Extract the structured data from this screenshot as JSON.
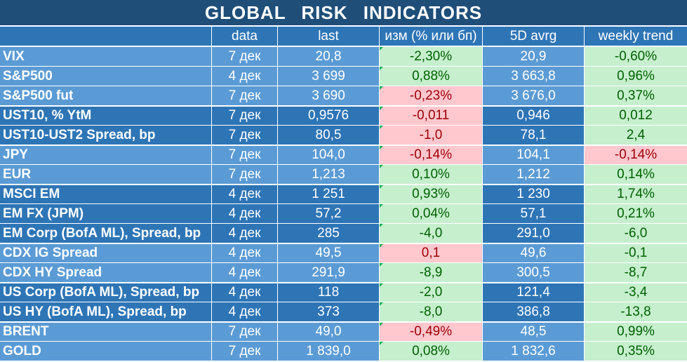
{
  "title": "GLOBAL  RISK  INDICATORS",
  "columns": [
    "",
    "data",
    "last",
    "изм (% или бп)",
    "5D avrg",
    "weekly trend"
  ],
  "rows": [
    {
      "name": "VIX",
      "date": "7 дек",
      "last": "20,8",
      "chg": "-2,30%",
      "chg_tone": "pos",
      "avg": "20,9",
      "trend": "-0,60%",
      "trend_tone": "pos",
      "group_start": false
    },
    {
      "name": "S&P500",
      "date": "4 дек",
      "last": "3 699",
      "chg": "0,88%",
      "chg_tone": "pos",
      "avg": "3 663,8",
      "trend": "0,96%",
      "trend_tone": "pos",
      "group_start": false
    },
    {
      "name": "S&P500 fut",
      "date": "7 дек",
      "last": "3 690",
      "chg": "-0,23%",
      "chg_tone": "neg",
      "avg": "3 676,0",
      "trend": "0,37%",
      "trend_tone": "pos",
      "group_start": false
    },
    {
      "name": "UST10, % YtM",
      "date": "7 дек",
      "last": "0,9576",
      "chg": "-0,011",
      "chg_tone": "neg",
      "avg": "0,946",
      "trend": "0,012",
      "trend_tone": "pos",
      "group_start": true
    },
    {
      "name": "UST10-UST2 Spread, bp",
      "date": "7 дек",
      "last": "80,5",
      "chg": "-1,0",
      "chg_tone": "neg",
      "avg": "78,1",
      "trend": "2,4",
      "trend_tone": "pos",
      "group_start": false
    },
    {
      "name": "JPY",
      "date": "7 дек",
      "last": "104,0",
      "chg": "-0,14%",
      "chg_tone": "neg",
      "avg": "104,1",
      "trend": "-0,14%",
      "trend_tone": "neg",
      "group_start": true
    },
    {
      "name": "EUR",
      "date": "7 дек",
      "last": "1,213",
      "chg": "0,10%",
      "chg_tone": "pos",
      "avg": "1,212",
      "trend": "0,14%",
      "trend_tone": "pos",
      "group_start": false
    },
    {
      "name": "MSCI EM",
      "date": "4 дек",
      "last": "1 251",
      "chg": "0,93%",
      "chg_tone": "pos",
      "avg": "1 230",
      "trend": "1,74%",
      "trend_tone": "pos",
      "group_start": true
    },
    {
      "name": "EM FX (JPM)",
      "date": "4 дек",
      "last": "57,2",
      "chg": "0,04%",
      "chg_tone": "pos",
      "avg": "57,1",
      "trend": "0,21%",
      "trend_tone": "pos",
      "group_start": false
    },
    {
      "name": "EM Corp (BofA ML), Spread, bp",
      "date": "4 дек",
      "last": "285",
      "chg": "-4,0",
      "chg_tone": "pos",
      "avg": "291,0",
      "trend": "-6,0",
      "trend_tone": "pos",
      "group_start": false
    },
    {
      "name": "CDX IG Spread",
      "date": "4 дек",
      "last": "49,5",
      "chg": "0,1",
      "chg_tone": "neg",
      "avg": "49,6",
      "trend": "-0,1",
      "trend_tone": "pos",
      "group_start": true
    },
    {
      "name": "CDX HY Spread",
      "date": "4 дек",
      "last": "291,9",
      "chg": "-8,9",
      "chg_tone": "pos",
      "avg": "300,5",
      "trend": "-8,7",
      "trend_tone": "pos",
      "group_start": false
    },
    {
      "name": "US Corp (BofA ML), Spread, bp",
      "date": "4 дек",
      "last": "118",
      "chg": "-2,0",
      "chg_tone": "pos",
      "avg": "121,4",
      "trend": "-3,4",
      "trend_tone": "pos",
      "group_start": true
    },
    {
      "name": "US HY (BofA ML), Spread, bp",
      "date": "4 дек",
      "last": "373",
      "chg": "-8,0",
      "chg_tone": "pos",
      "avg": "386,8",
      "trend": "-13,8",
      "trend_tone": "pos",
      "group_start": false
    },
    {
      "name": "BRENT",
      "date": "7 дек",
      "last": "49,0",
      "chg": "-0,49%",
      "chg_tone": "neg",
      "avg": "48,5",
      "trend": "0,99%",
      "trend_tone": "pos",
      "group_start": true
    },
    {
      "name": "GOLD",
      "date": "7 дек",
      "last": "1 839,0",
      "chg": "0,08%",
      "chg_tone": "pos",
      "avg": "1 832,6",
      "trend": "0,35%",
      "trend_tone": "pos",
      "group_start": false
    }
  ],
  "group_shades": [
    "light",
    "dark",
    "light",
    "dark",
    "light",
    "dark",
    "light"
  ],
  "colors": {
    "title_bg": "#1f4e79",
    "header_bg": "#2e75b6",
    "light_blue": "#5b9bd5",
    "dark_blue": "#2e75b6",
    "positive_fill": "#c6efce",
    "positive_text": "#006100",
    "negative_fill": "#ffc7ce",
    "negative_text": "#9c0006"
  }
}
